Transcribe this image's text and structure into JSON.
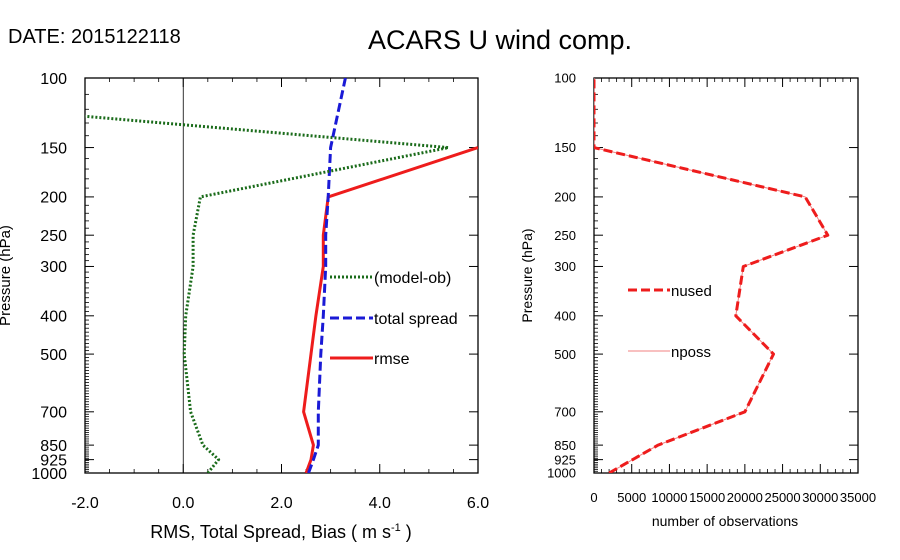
{
  "header": {
    "date_label": "DATE: 2015122118",
    "title": "ACARS U wind comp."
  },
  "colors": {
    "model_ob": "#1a6b1a",
    "total_spread": "#1a1ad6",
    "rmse": "#ee1c1c",
    "nused": "#ee1c1c",
    "nposs": "#f08080"
  },
  "chart_data": [
    {
      "type": "line",
      "title": "ACARS U wind comp.",
      "xlabel": "RMS, Total Spread, Bias ( m s-1 )",
      "ylabel": "Pressure (hPa)",
      "xlim": [
        -2.0,
        6.0
      ],
      "ylim": [
        1000,
        100
      ],
      "yscale": "log",
      "x_ticks": [
        -2.0,
        0.0,
        2.0,
        4.0,
        6.0
      ],
      "x_tick_labels": [
        "-2.0",
        "0.0",
        "2.0",
        "4.0",
        "6.0"
      ],
      "y_ticks": [
        100,
        150,
        200,
        250,
        300,
        400,
        500,
        700,
        850,
        925,
        1000
      ],
      "y_tick_labels": [
        "100",
        "150",
        "200",
        "250",
        "300",
        "400",
        "500",
        "700",
        "850",
        "925",
        "1000"
      ],
      "zero_line": 0.0,
      "series": [
        {
          "name": "(model-ob)",
          "style": "dotted",
          "color_key": "model_ob",
          "pressure": [
            1000,
            925,
            850,
            700,
            500,
            400,
            300,
            250,
            200,
            150,
            125
          ],
          "values": [
            0.5,
            0.72,
            0.4,
            0.15,
            0.02,
            0.05,
            0.2,
            0.2,
            0.35,
            5.4,
            -2.0
          ]
        },
        {
          "name": "total spread",
          "style": "dashed",
          "color_key": "total_spread",
          "pressure": [
            1000,
            925,
            850,
            700,
            500,
            400,
            300,
            250,
            200,
            150,
            100
          ],
          "values": [
            2.55,
            2.65,
            2.75,
            2.75,
            2.8,
            2.85,
            2.9,
            2.9,
            2.95,
            3.0,
            3.3
          ]
        },
        {
          "name": "rmse",
          "style": "solid",
          "color_key": "rmse",
          "pressure": [
            1000,
            925,
            850,
            700,
            500,
            400,
            300,
            250,
            200,
            150
          ],
          "values": [
            2.5,
            2.6,
            2.65,
            2.45,
            2.6,
            2.7,
            2.85,
            2.85,
            2.95,
            6.0
          ]
        }
      ]
    },
    {
      "type": "line",
      "xlabel": "number of observations",
      "ylabel": "Pressure (hPa)",
      "xlim": [
        0,
        35000
      ],
      "ylim": [
        1000,
        100
      ],
      "yscale": "log",
      "x_ticks": [
        0,
        5000,
        10000,
        15000,
        20000,
        25000,
        30000,
        35000
      ],
      "x_tick_labels": [
        "0",
        "5000",
        "10000",
        "15000",
        "20000",
        "25000",
        "30000",
        "35000"
      ],
      "y_ticks": [
        100,
        150,
        200,
        250,
        300,
        400,
        500,
        700,
        850,
        925,
        1000
      ],
      "y_tick_labels": [
        "100",
        "150",
        "200",
        "250",
        "300",
        "400",
        "500",
        "700",
        "850",
        "925",
        "1000"
      ],
      "series": [
        {
          "name": "nused",
          "style": "dashed",
          "color_key": "nused",
          "pressure": [
            1000,
            850,
            700,
            500,
            400,
            300,
            250,
            200,
            150,
            100
          ],
          "values": [
            2000,
            8500,
            20000,
            23800,
            18800,
            19800,
            31000,
            28000,
            0,
            0
          ]
        },
        {
          "name": "nposs",
          "style": "solid",
          "color_key": "nposs",
          "pressure": [
            1000,
            850,
            700,
            500,
            400,
            300,
            250,
            200,
            150,
            100
          ],
          "values": [
            2000,
            8500,
            20000,
            23800,
            18800,
            19800,
            31000,
            28000,
            0,
            0
          ]
        }
      ]
    }
  ]
}
